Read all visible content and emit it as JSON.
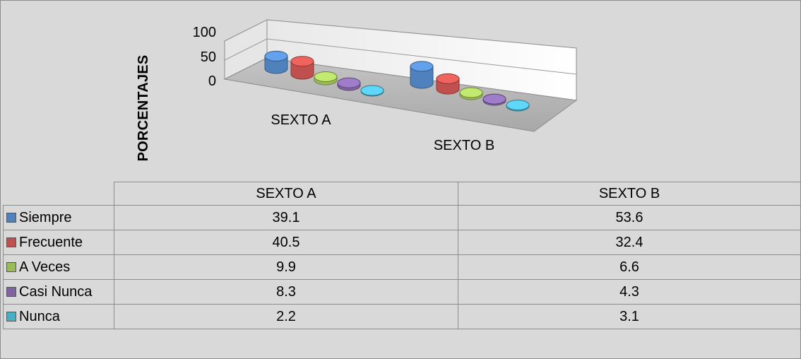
{
  "chart_data": {
    "type": "bar",
    "ylabel": "PORCENTAJES",
    "ylim": [
      0,
      100
    ],
    "yticks": [
      "100",
      "50",
      "0"
    ],
    "categories": [
      "SEXTO A",
      "SEXTO B"
    ],
    "series": [
      {
        "name": "Siempre",
        "values": [
          39.1,
          53.6
        ],
        "color": "#4f81bd"
      },
      {
        "name": "Frecuente",
        "values": [
          40.5,
          32.4
        ],
        "color": "#c0504d"
      },
      {
        "name": "A Veces",
        "values": [
          9.9,
          6.6
        ],
        "color": "#9bbb59"
      },
      {
        "name": "Casi Nunca",
        "values": [
          8.3,
          4.3
        ],
        "color": "#8064a2"
      },
      {
        "name": "Nunca",
        "values": [
          2.2,
          3.1
        ],
        "color": "#4bacc6"
      }
    ],
    "legend": "data-table"
  }
}
